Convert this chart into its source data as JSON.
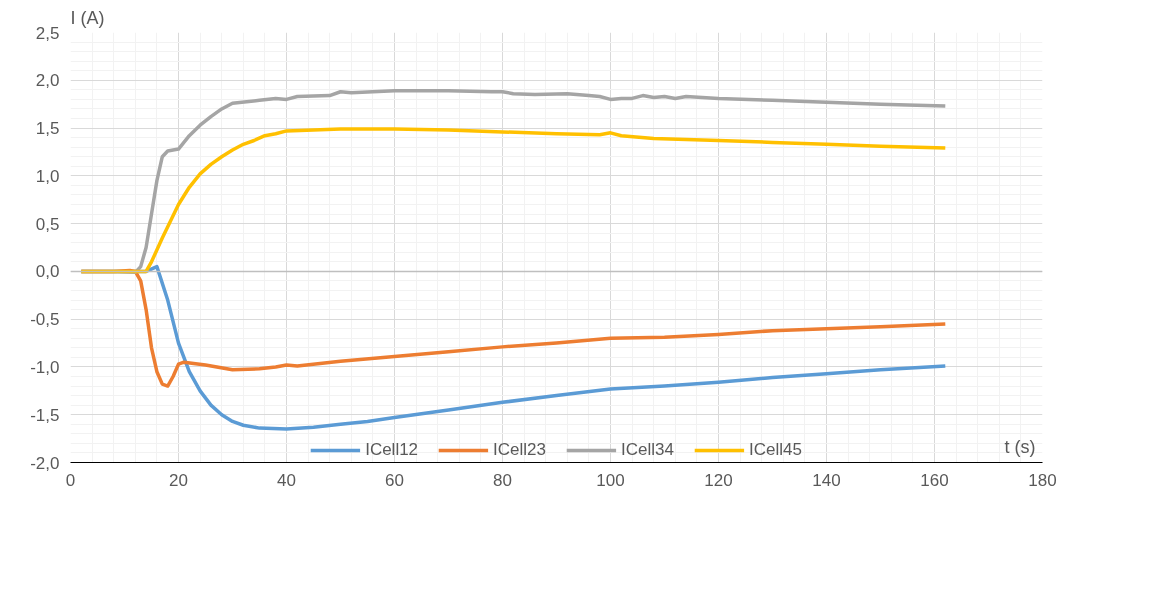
{
  "chart_data": {
    "type": "line",
    "xlabel": "t (s)",
    "ylabel": "I (A)",
    "xlim": [
      0,
      180
    ],
    "ylim": [
      -2,
      2.5
    ],
    "xticks": [
      0,
      20,
      40,
      60,
      80,
      100,
      120,
      140,
      160,
      180
    ],
    "yticks": [
      {
        "value": -2,
        "label": "-2,0"
      },
      {
        "value": -1.5,
        "label": "-1,5"
      },
      {
        "value": -1,
        "label": "-1,0"
      },
      {
        "value": -0.5,
        "label": "-0,5"
      },
      {
        "value": 0,
        "label": "0,0"
      },
      {
        "value": 0.5,
        "label": "0,5"
      },
      {
        "value": 1,
        "label": "1,0"
      },
      {
        "value": 1.5,
        "label": "1,5"
      },
      {
        "value": 2,
        "label": "2,0"
      },
      {
        "value": 2.5,
        "label": "2,5"
      }
    ],
    "grid": true,
    "legend": "bottom",
    "marker": "none",
    "line_style": "solid",
    "series": [
      {
        "name": "ICell12",
        "color": "#5b9bd5",
        "x": [
          2,
          8,
          14,
          16,
          18,
          20,
          22,
          24,
          26,
          28,
          30,
          32,
          35,
          40,
          45,
          50,
          55,
          60,
          70,
          80,
          90,
          100,
          110,
          120,
          130,
          140,
          150,
          162
        ],
        "values": [
          0,
          0,
          0,
          0.05,
          -0.3,
          -0.75,
          -1.05,
          -1.25,
          -1.4,
          -1.5,
          -1.57,
          -1.61,
          -1.64,
          -1.65,
          -1.63,
          -1.6,
          -1.57,
          -1.53,
          -1.45,
          -1.37,
          -1.3,
          -1.23,
          -1.2,
          -1.16,
          -1.11,
          -1.07,
          -1.03,
          -0.99
        ]
      },
      {
        "name": "ICell23",
        "color": "#ed7d31",
        "x": [
          2,
          8,
          11,
          12,
          13,
          14,
          15,
          16,
          17,
          18,
          19,
          20,
          21,
          25,
          30,
          35,
          38,
          40,
          42,
          50,
          60,
          70,
          80,
          90,
          100,
          110,
          120,
          130,
          140,
          150,
          162
        ],
        "values": [
          0,
          0,
          0.01,
          0,
          -0.1,
          -0.4,
          -0.8,
          -1.05,
          -1.18,
          -1.2,
          -1.1,
          -0.97,
          -0.95,
          -0.98,
          -1.03,
          -1.02,
          -1.0,
          -0.98,
          -0.99,
          -0.94,
          -0.89,
          -0.84,
          -0.79,
          -0.75,
          -0.7,
          -0.69,
          -0.66,
          -0.62,
          -0.6,
          -0.58,
          -0.55
        ]
      },
      {
        "name": "ICell34",
        "color": "#a5a5a5",
        "x": [
          2,
          8,
          12,
          13,
          14,
          15,
          16,
          17,
          18,
          20,
          22,
          24,
          26,
          28,
          30,
          35,
          38,
          40,
          42,
          48,
          50,
          52,
          56,
          60,
          65,
          70,
          78,
          80,
          82,
          86,
          92,
          96,
          98,
          100,
          102,
          104,
          106,
          108,
          110,
          112,
          114,
          120,
          130,
          140,
          145,
          150,
          155,
          162
        ],
        "values": [
          0,
          0,
          -0.01,
          0.05,
          0.25,
          0.6,
          0.95,
          1.2,
          1.26,
          1.28,
          1.42,
          1.53,
          1.62,
          1.7,
          1.76,
          1.79,
          1.81,
          1.8,
          1.83,
          1.84,
          1.88,
          1.87,
          1.88,
          1.89,
          1.89,
          1.89,
          1.88,
          1.88,
          1.86,
          1.85,
          1.86,
          1.84,
          1.83,
          1.8,
          1.81,
          1.81,
          1.84,
          1.82,
          1.83,
          1.81,
          1.83,
          1.81,
          1.79,
          1.77,
          1.76,
          1.75,
          1.74,
          1.73
        ]
      },
      {
        "name": "ICell45",
        "color": "#ffc000",
        "x": [
          2,
          8,
          14,
          15,
          17,
          20,
          22,
          24,
          26,
          28,
          30,
          32,
          34,
          36,
          38,
          40,
          45,
          50,
          55,
          60,
          70,
          80,
          90,
          98,
          100,
          102,
          108,
          120,
          130,
          140,
          150,
          162
        ],
        "values": [
          0,
          0,
          0,
          0.1,
          0.35,
          0.7,
          0.88,
          1.02,
          1.12,
          1.2,
          1.27,
          1.33,
          1.37,
          1.42,
          1.44,
          1.47,
          1.48,
          1.49,
          1.49,
          1.49,
          1.48,
          1.46,
          1.44,
          1.43,
          1.45,
          1.42,
          1.39,
          1.37,
          1.35,
          1.33,
          1.31,
          1.29
        ]
      }
    ]
  }
}
